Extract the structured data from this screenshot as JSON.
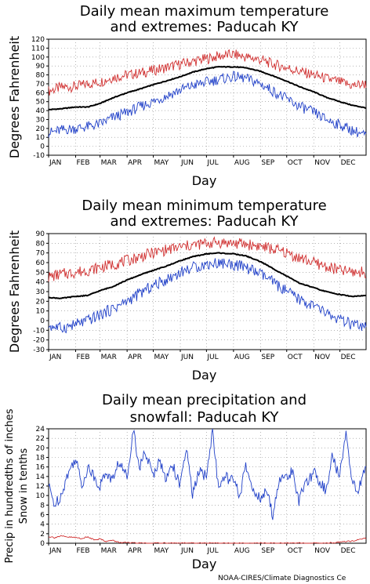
{
  "credit": "NOAA-CIRES/Climate Diagnostics Ce",
  "months": [
    "JAN",
    "FEB",
    "MAR",
    "APR",
    "MAY",
    "JUN",
    "JUL",
    "AUG",
    "SEP",
    "OCT",
    "NOV",
    "DEC"
  ],
  "chart_data": [
    {
      "type": "line",
      "title_lines": [
        "Daily mean maximum temperature",
        "and extremes: Paducah KY"
      ],
      "xlabel": "Day",
      "ylabel": "Degrees Fahrenheit",
      "ylim": [
        -10,
        120
      ],
      "yticks": [
        -10,
        0,
        10,
        20,
        30,
        40,
        50,
        60,
        70,
        80,
        90,
        100,
        110,
        120
      ],
      "grid": true,
      "x": [
        1,
        15,
        32,
        46,
        60,
        74,
        91,
        105,
        121,
        135,
        152,
        166,
        182,
        196,
        213,
        227,
        244,
        258,
        274,
        288,
        305,
        319,
        335,
        349,
        365
      ],
      "series": [
        {
          "color": "#d03030",
          "values": [
            62,
            66,
            67,
            70,
            72,
            77,
            80,
            82,
            85,
            88,
            92,
            95,
            98,
            101,
            103,
            100,
            97,
            92,
            88,
            84,
            80,
            76,
            72,
            68,
            70
          ]
        },
        {
          "color": "#000000",
          "values": [
            41,
            42,
            44,
            44,
            48,
            54,
            60,
            64,
            69,
            73,
            78,
            83,
            87,
            89,
            89,
            88,
            84,
            79,
            73,
            67,
            61,
            55,
            50,
            46,
            43
          ]
        },
        {
          "color": "#2040c8",
          "values": [
            15,
            18,
            20,
            22,
            25,
            32,
            38,
            44,
            50,
            56,
            63,
            68,
            72,
            75,
            78,
            76,
            70,
            62,
            53,
            45,
            38,
            30,
            24,
            18,
            12
          ]
        }
      ]
    },
    {
      "type": "line",
      "title_lines": [
        "Daily mean minimum temperature",
        "and extremes: Paducah KY"
      ],
      "xlabel": "Day",
      "ylabel": "Degrees Fahrenheit",
      "ylim": [
        -30,
        90
      ],
      "yticks": [
        -30,
        -20,
        -10,
        0,
        10,
        20,
        30,
        40,
        50,
        60,
        70,
        80,
        90
      ],
      "grid": true,
      "x": [
        1,
        15,
        32,
        46,
        60,
        74,
        91,
        105,
        121,
        135,
        152,
        166,
        182,
        196,
        213,
        227,
        244,
        258,
        274,
        288,
        305,
        319,
        335,
        349,
        365
      ],
      "series": [
        {
          "color": "#d03030",
          "values": [
            45,
            48,
            50,
            52,
            55,
            58,
            62,
            66,
            70,
            73,
            76,
            78,
            80,
            81,
            80,
            79,
            77,
            74,
            70,
            65,
            60,
            56,
            52,
            50,
            50
          ]
        },
        {
          "color": "#000000",
          "values": [
            24,
            23,
            25,
            26,
            31,
            35,
            42,
            47,
            52,
            56,
            62,
            66,
            69,
            70,
            69,
            67,
            61,
            54,
            46,
            39,
            34,
            30,
            27,
            25,
            26
          ]
        },
        {
          "color": "#2040c8",
          "values": [
            -5,
            -8,
            -4,
            0,
            6,
            12,
            20,
            28,
            36,
            42,
            50,
            55,
            58,
            60,
            58,
            55,
            48,
            40,
            30,
            22,
            15,
            8,
            0,
            -4,
            -8
          ]
        }
      ]
    },
    {
      "type": "line",
      "title_lines": [
        "Daily mean precipitation and",
        "snowfall: Paducah KY"
      ],
      "xlabel": "Day",
      "ylabel_lines": [
        "Precip in hundredths of inches",
        "Snow in tenths"
      ],
      "ylim": [
        0,
        24
      ],
      "yticks": [
        0,
        2,
        4,
        6,
        8,
        10,
        12,
        14,
        16,
        18,
        20,
        22,
        24
      ],
      "grid": true,
      "x": [
        1,
        8,
        15,
        22,
        32,
        39,
        46,
        53,
        60,
        67,
        74,
        81,
        91,
        98,
        105,
        112,
        121,
        128,
        135,
        142,
        152,
        159,
        166,
        173,
        182,
        189,
        196,
        203,
        213,
        220,
        227,
        234,
        244,
        251,
        258,
        265,
        274,
        281,
        288,
        295,
        305,
        312,
        319,
        326,
        335,
        342,
        349,
        356,
        365
      ],
      "series": [
        {
          "color": "#2040c8",
          "values": [
            12,
            8,
            10,
            14,
            18,
            12,
            16,
            14,
            12,
            15,
            13,
            17,
            14,
            24,
            16,
            19,
            14,
            18,
            13,
            17,
            12,
            20,
            10,
            15,
            14,
            24,
            11,
            14,
            13,
            10,
            16,
            12,
            9,
            11,
            6,
            13,
            14,
            15,
            9,
            12,
            15,
            13,
            11,
            18,
            14,
            24,
            13,
            11,
            16
          ]
        },
        {
          "color": "#d03030",
          "values": [
            1.4,
            1.2,
            1.5,
            1.3,
            1.2,
            1.0,
            1.3,
            0.8,
            0.9,
            0.4,
            0.6,
            0.2,
            0.1,
            0,
            0,
            0,
            0,
            0,
            0,
            0,
            0,
            0,
            0,
            0,
            0,
            0,
            0,
            0,
            0,
            0,
            0,
            0,
            0,
            0,
            0,
            0,
            0,
            0,
            0,
            0,
            0,
            0,
            0,
            0.1,
            0.2,
            0.3,
            0.5,
            0.7,
            1.0
          ]
        }
      ]
    }
  ]
}
